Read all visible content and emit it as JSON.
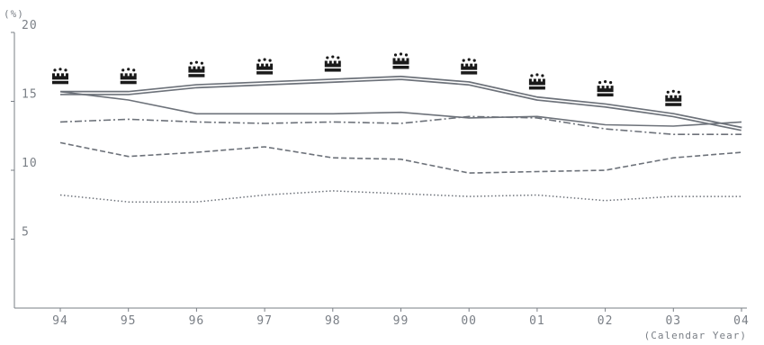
{
  "chart_data": {
    "type": "line",
    "title": "",
    "ylabel": "(%)",
    "xlabel": "(Calendar Year)",
    "ylim": [
      0,
      20
    ],
    "yticks": [
      5,
      10,
      15,
      20
    ],
    "categories": [
      "94",
      "95",
      "96",
      "97",
      "98",
      "99",
      "00",
      "01",
      "02",
      "03",
      "04"
    ],
    "grid": false,
    "series": [
      {
        "style": "double-solid",
        "color": "#6d727a",
        "marker": "crown-icon",
        "values": [
          15.6,
          15.6,
          16.1,
          16.3,
          16.5,
          16.7,
          16.3,
          15.2,
          14.7,
          14.0,
          13.0
        ]
      },
      {
        "style": "solid",
        "color": "#6d727a",
        "values": [
          15.7,
          15.1,
          14.1,
          14.1,
          14.1,
          14.2,
          13.8,
          13.9,
          13.3,
          13.2,
          13.5
        ]
      },
      {
        "style": "dash-dot",
        "color": "#6d727a",
        "values": [
          13.5,
          13.7,
          13.5,
          13.4,
          13.5,
          13.4,
          13.9,
          13.8,
          13.0,
          12.6,
          12.6
        ]
      },
      {
        "style": "dashed",
        "color": "#6d727a",
        "values": [
          12.0,
          11.0,
          11.3,
          11.7,
          10.9,
          10.8,
          9.8,
          9.9,
          10.0,
          10.9,
          11.3
        ]
      },
      {
        "style": "dotted",
        "color": "#6d727a",
        "values": [
          8.2,
          7.7,
          7.7,
          8.2,
          8.5,
          8.3,
          8.1,
          8.2,
          7.8,
          8.1,
          8.1
        ]
      }
    ]
  }
}
